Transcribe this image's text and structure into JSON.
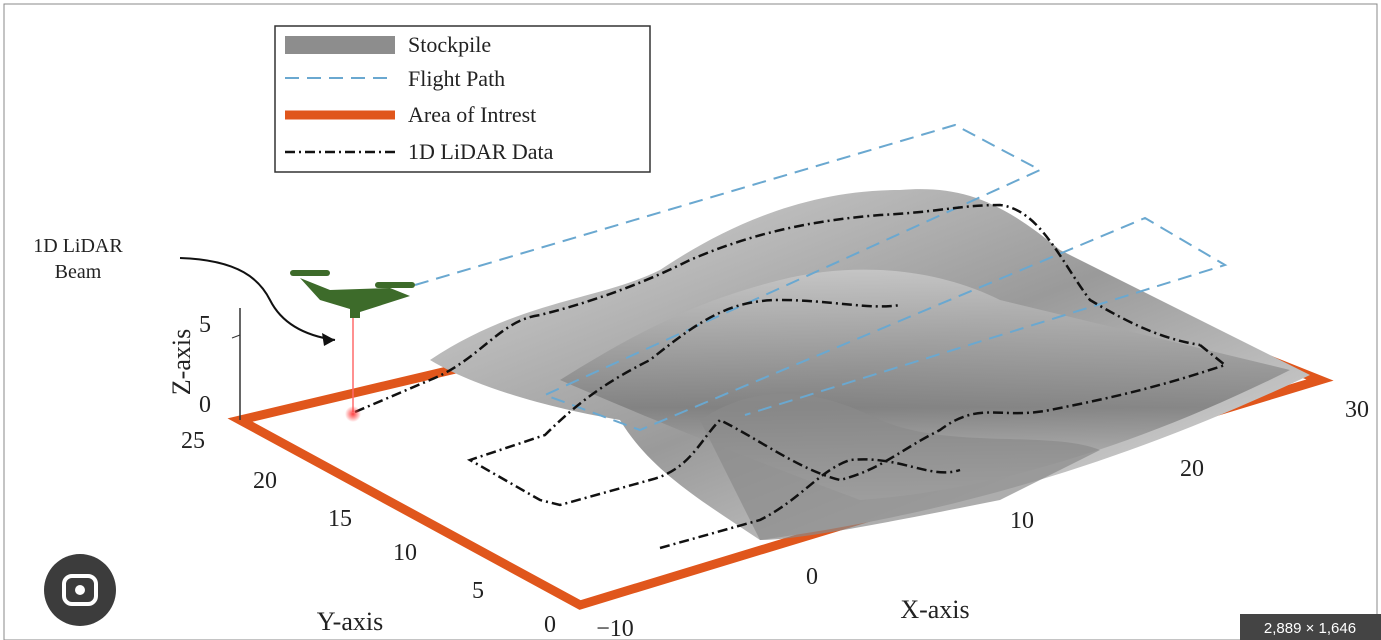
{
  "legend": [
    {
      "label": "Stockpile"
    },
    {
      "label": "Flight Path"
    },
    {
      "label": "Area of Intrest"
    },
    {
      "label": "1D LiDAR Data"
    }
  ],
  "annotation": {
    "lines": [
      "1D LiDAR",
      "Beam"
    ]
  },
  "axes": {
    "x": {
      "title": "X-axis",
      "ticks": [
        "−10",
        "0",
        "10",
        "20",
        "30"
      ]
    },
    "y": {
      "title": "Y-axis",
      "ticks": [
        "0",
        "5",
        "10",
        "15",
        "20",
        "25"
      ]
    },
    "z": {
      "title": "Z-axis",
      "ticks": [
        "0",
        "5"
      ]
    }
  },
  "image_size": "2,889 × 1,646"
}
